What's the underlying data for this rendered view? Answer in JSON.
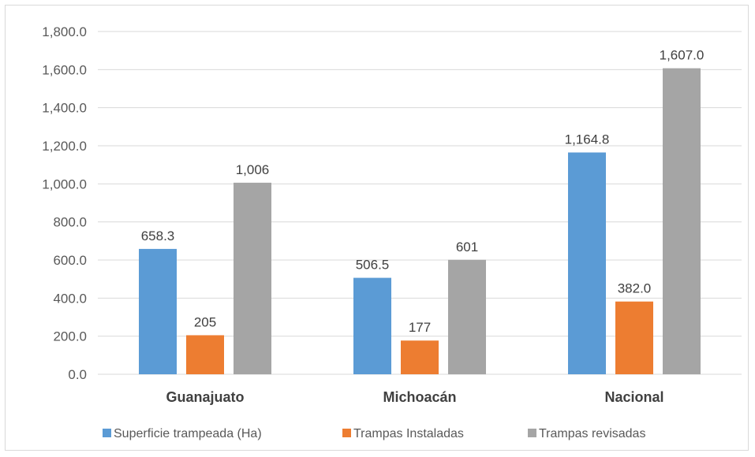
{
  "chart_data": {
    "type": "bar",
    "categories": [
      "Guanajuato",
      "Michoacán",
      "Nacional"
    ],
    "series": [
      {
        "name": "Superficie trampeada (Ha)",
        "color": "#5b9bd5",
        "values": [
          658.3,
          506.5,
          1164.8
        ],
        "labels": [
          "658.3",
          "506.5",
          "1,164.8"
        ]
      },
      {
        "name": "Trampas Instaladas",
        "color": "#ed7d31",
        "values": [
          205,
          177,
          382.0
        ],
        "labels": [
          "205",
          "177",
          "382.0"
        ]
      },
      {
        "name": "Trampas revisadas",
        "color": "#a5a5a5",
        "values": [
          1006,
          601,
          1607.0
        ],
        "labels": [
          "1,006",
          "601",
          "1,607.0"
        ]
      }
    ],
    "yticks": [
      "0.0",
      "200.0",
      "400.0",
      "600.0",
      "800.0",
      "1,000.0",
      "1,200.0",
      "1,400.0",
      "1,600.0",
      "1,800.0"
    ],
    "ylim": [
      0,
      1800
    ],
    "grid": true,
    "legend_position": "bottom",
    "title": "",
    "xlabel": "",
    "ylabel": ""
  }
}
